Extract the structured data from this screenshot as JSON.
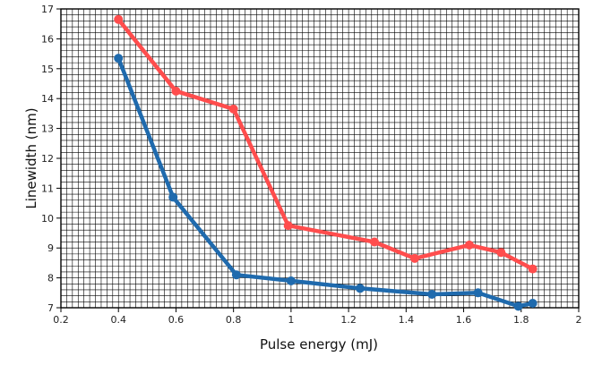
{
  "chart_data": {
    "type": "line",
    "xlabel": "Pulse energy (mJ)",
    "ylabel": "Linewidth (nm)",
    "xlim": [
      0.2,
      2
    ],
    "ylim": [
      7,
      17
    ],
    "x_ticks": [
      "0.2",
      "0.4",
      "0.6",
      "0.8",
      "1",
      "1.2",
      "1.4",
      "1.6",
      "1.8",
      "2"
    ],
    "y_ticks": [
      "7",
      "8",
      "9",
      "10",
      "11",
      "12",
      "13",
      "14",
      "15",
      "16",
      "17"
    ],
    "grid": true,
    "series": [
      {
        "color": "#ff4d4d",
        "points": [
          [
            0.4,
            16.65
          ],
          [
            0.6,
            14.25
          ],
          [
            0.8,
            13.65
          ],
          [
            0.99,
            9.75
          ],
          [
            1.29,
            9.2
          ],
          [
            1.43,
            8.65
          ],
          [
            1.62,
            9.1
          ],
          [
            1.73,
            8.85
          ],
          [
            1.84,
            8.3
          ]
        ]
      },
      {
        "color": "#1f6aad",
        "points": [
          [
            0.4,
            15.35
          ],
          [
            0.59,
            10.7
          ],
          [
            0.81,
            8.1
          ],
          [
            1.0,
            7.9
          ],
          [
            1.24,
            7.65
          ],
          [
            1.49,
            7.45
          ],
          [
            1.65,
            7.5
          ],
          [
            1.79,
            7.05
          ],
          [
            1.84,
            7.15
          ]
        ]
      }
    ]
  }
}
